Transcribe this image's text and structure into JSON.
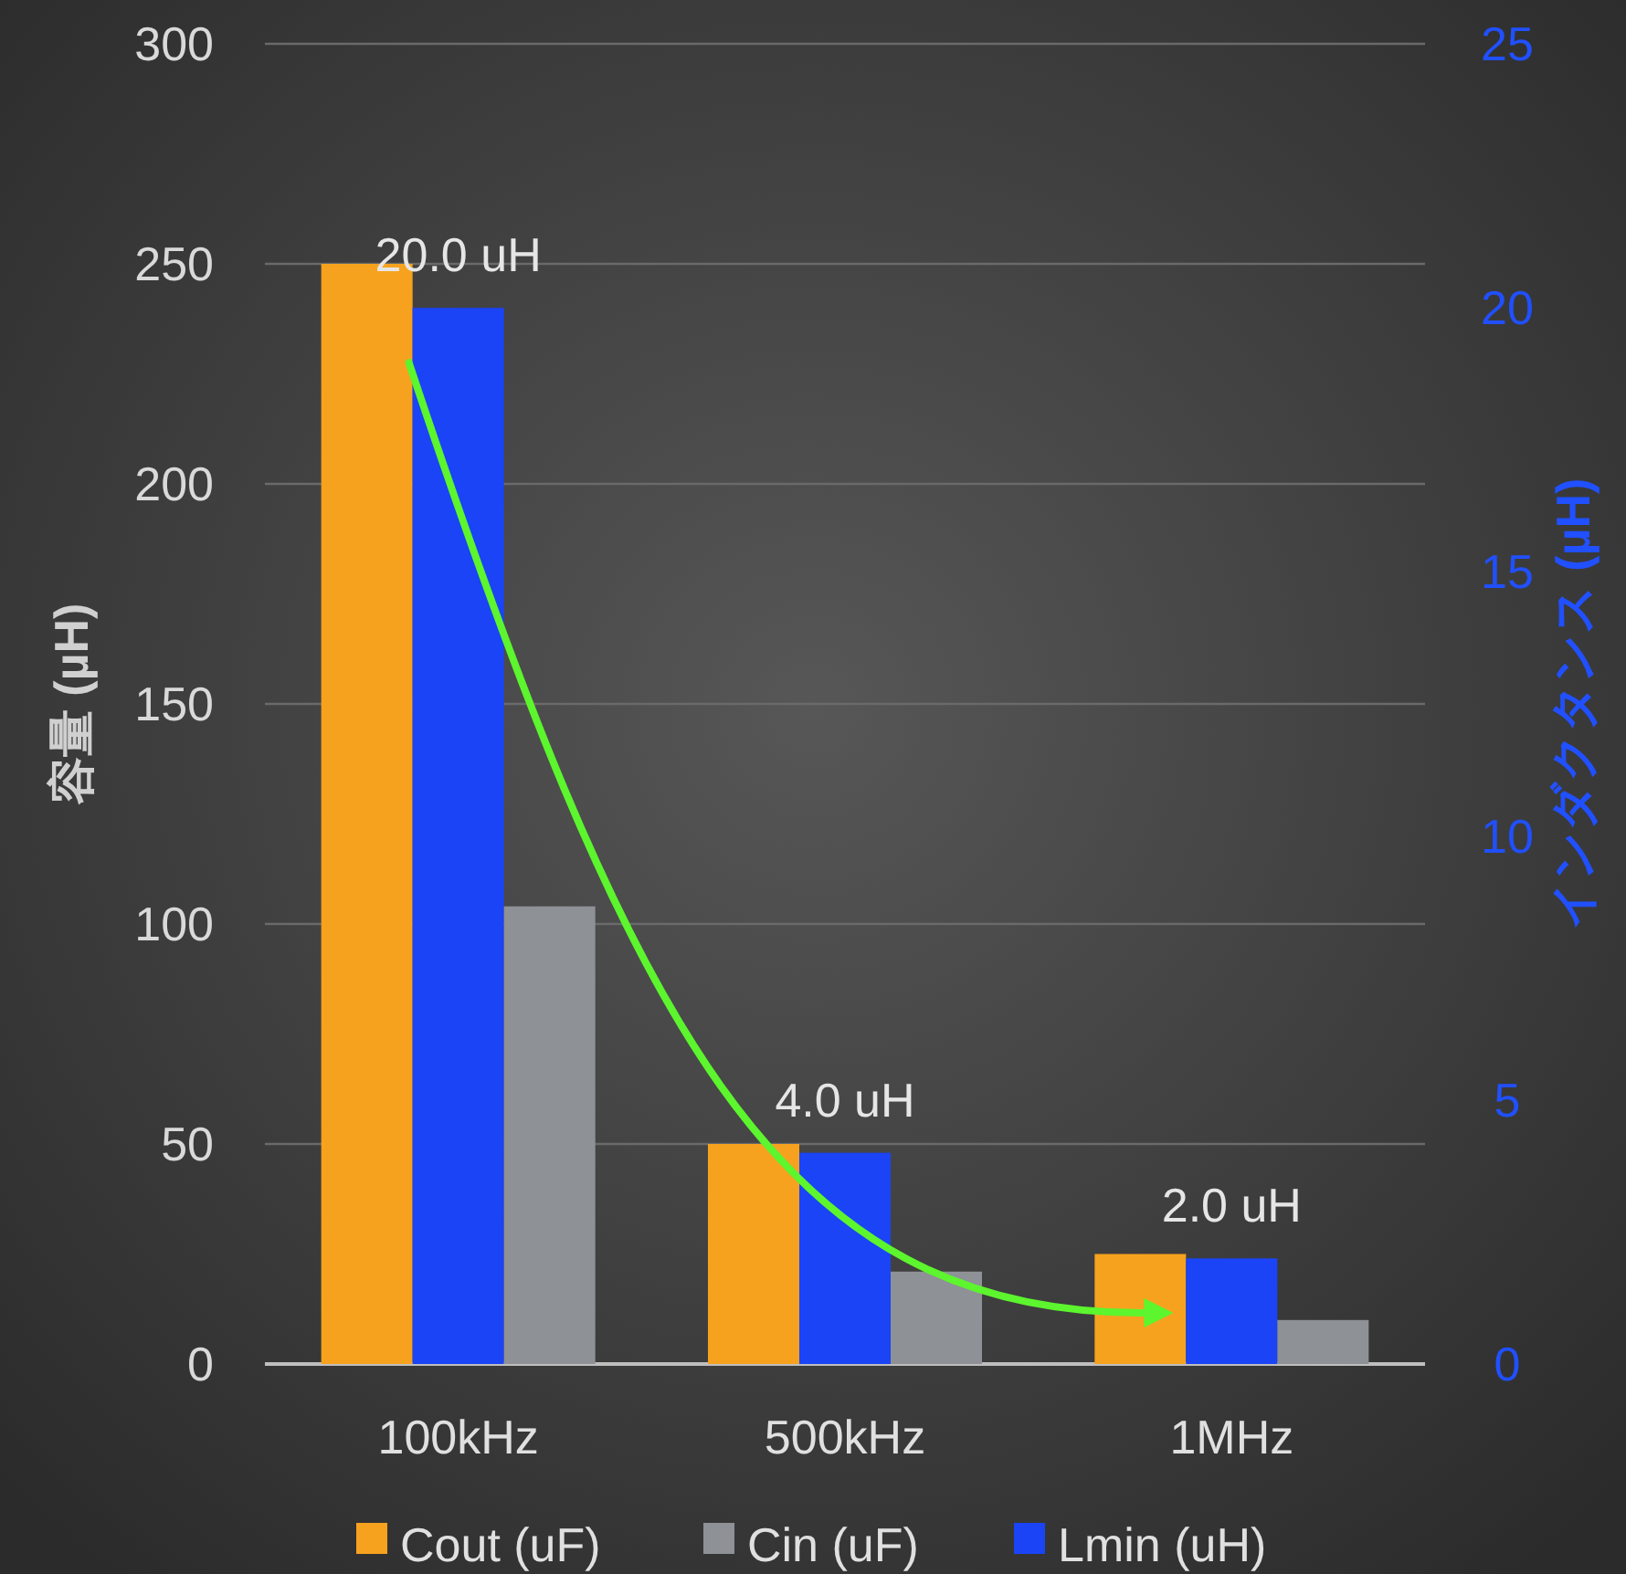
{
  "chart_data": {
    "type": "bar",
    "categories": [
      "100kHz",
      "500kHz",
      "1MHz"
    ],
    "ylabel": "容量 (µH)",
    "y2label": "インダクタンス (µH)",
    "ylim": [
      0,
      300
    ],
    "yticks": [
      0,
      50,
      100,
      150,
      200,
      250,
      300
    ],
    "y2lim": [
      0,
      25
    ],
    "y2ticks": [
      0,
      5,
      10,
      15,
      20,
      25
    ],
    "grid": "y",
    "legend": "bottom",
    "series": [
      {
        "name": "Cout (uF)",
        "color": "#f7a21e",
        "values": [
          250,
          50,
          25
        ]
      },
      {
        "name": "Lmin (uH)",
        "color": "#1a44f5",
        "values": [
          20,
          4,
          2
        ],
        "axis": "y2",
        "value_labels": [
          "20.0 uH",
          "4.0 uH",
          "2.0 uH"
        ]
      },
      {
        "name": "Cin (uF)",
        "color": "#8e9196",
        "values": [
          104,
          21,
          10
        ]
      }
    ]
  }
}
